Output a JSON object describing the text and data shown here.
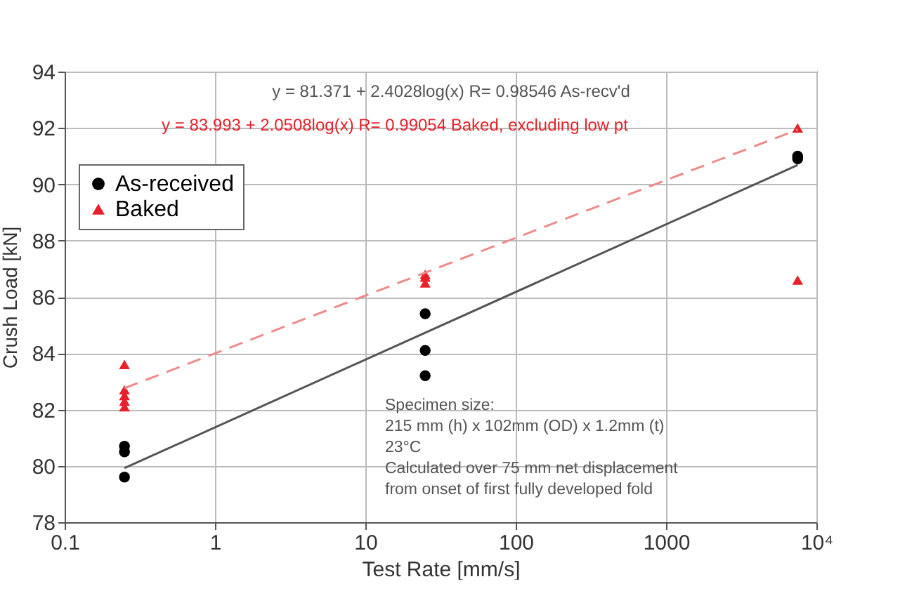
{
  "chart_data": {
    "type": "scatter",
    "xlabel": "Test Rate [mm/s]",
    "ylabel": "Crush Load [kN]",
    "log": "x",
    "xlim": [
      0.1,
      10000
    ],
    "xticks": [
      0.1,
      1,
      10,
      100,
      1000,
      {
        "value": 10000,
        "label": "10⁴"
      }
    ],
    "ylim": [
      78,
      94
    ],
    "yticks": [
      78,
      80,
      82,
      84,
      86,
      88,
      90,
      92,
      94
    ],
    "grid": true,
    "legend": "top left",
    "series": [
      {
        "name": "As-received",
        "marker": "circle",
        "color": "#000000",
        "x": [
          0.25,
          0.25,
          0.25,
          25,
          25,
          25,
          7500,
          7500
        ],
        "values": [
          79.6,
          80.5,
          80.7,
          83.2,
          84.1,
          85.4,
          90.9,
          91.0
        ]
      },
      {
        "name": "Baked",
        "marker": "triangle",
        "color": "#e8202a",
        "x": [
          0.25,
          0.25,
          0.25,
          0.25,
          0.25,
          25,
          25,
          25,
          7500,
          7500
        ],
        "values": [
          83.6,
          82.7,
          82.5,
          82.3,
          82.1,
          86.5,
          86.7,
          86.8,
          92.0,
          86.6
        ]
      },
      {
        "type": "line",
        "marker": "none",
        "line_style": "solid",
        "color": "#555555",
        "x": [
          0.25,
          7500
        ],
        "values": [
          79.92,
          90.68
        ]
      },
      {
        "type": "line",
        "marker": "none",
        "line_style": "dashed",
        "color": "#f08a8a",
        "x": [
          0.25,
          7500
        ],
        "values": [
          82.76,
          91.94
        ]
      }
    ],
    "annotations": [
      "y = 81.371 + 2.4028log(x)   R= 0.98546  As-recv'd",
      "y = 83.993 + 2.0508log(x)   R= 0.99054  Baked, excluding low pt",
      "Specimen size:",
      "215 mm (h) x 102mm (OD) x 1.2mm (t)",
      "23°C",
      "Calculated over 75 mm net displacement",
      "from onset of first fully developed fold"
    ]
  }
}
